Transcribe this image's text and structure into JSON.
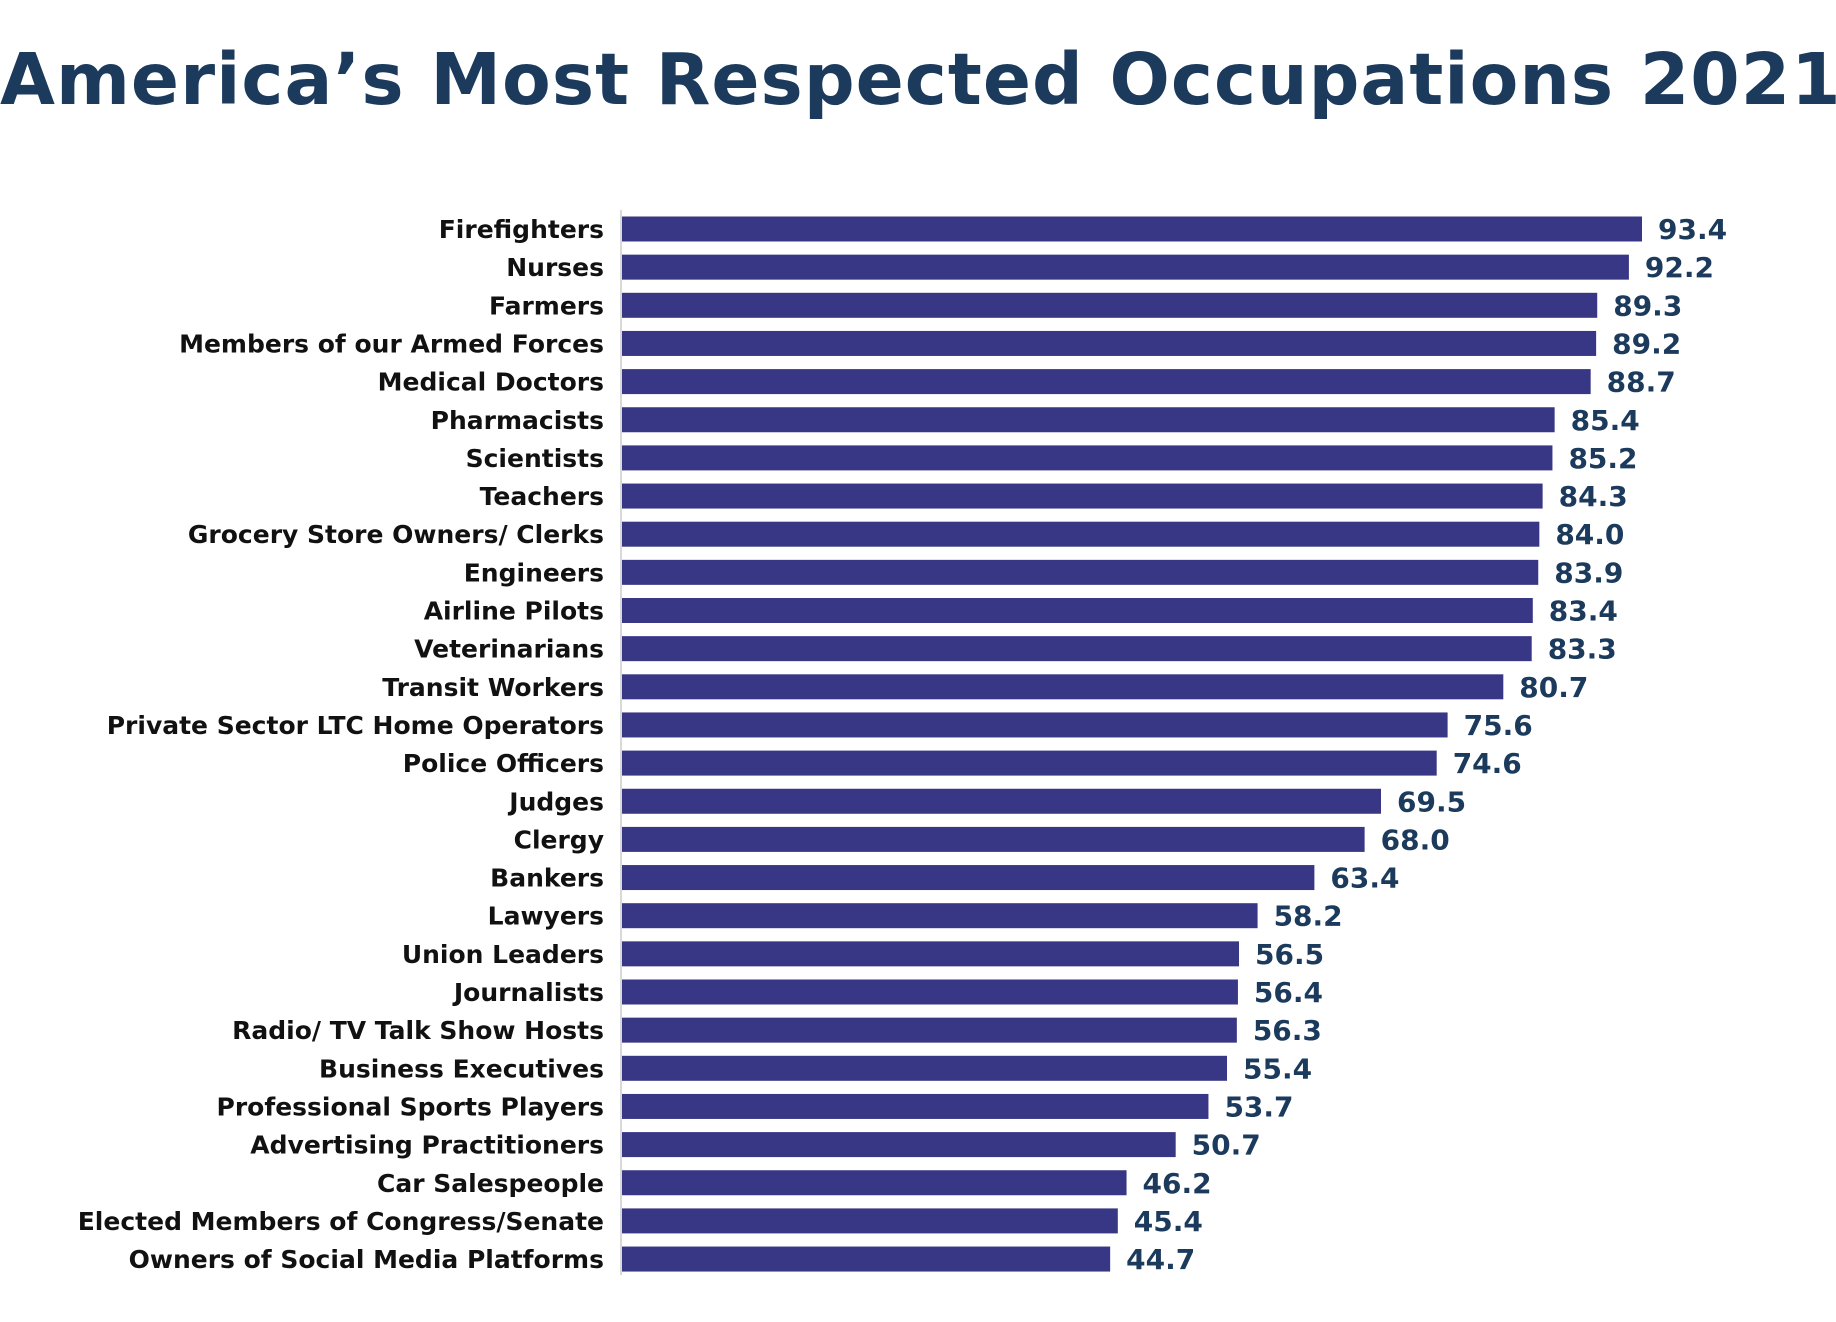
{
  "chart_data": {
    "type": "bar",
    "orientation": "horizontal",
    "title": "America’s Most Respected Occupations 2021",
    "xlabel": "",
    "ylabel": "",
    "xlim": [
      0,
      93.4
    ],
    "grid": false,
    "legend": "none",
    "bar_color": "#383785",
    "value_label_color": "#1b3a5c",
    "title_color": "#1b3a5c",
    "categories": [
      "Firefighters",
      "Nurses",
      "Farmers",
      "Members of our Armed Forces",
      "Medical Doctors",
      "Pharmacists",
      "Scientists",
      "Teachers",
      "Grocery Store Owners/ Clerks",
      "Engineers",
      "Airline Pilots",
      "Veterinarians",
      "Transit Workers",
      "Private Sector LTC Home Operators",
      "Police Officers",
      "Judges",
      "Clergy",
      "Bankers",
      "Lawyers",
      "Union Leaders",
      "Journalists",
      "Radio/ TV Talk Show Hosts",
      "Business Executives",
      "Professional Sports Players",
      "Advertising Practitioners",
      "Car Salespeople",
      "Elected Members of Congress/Senate",
      "Owners of Social Media Platforms"
    ],
    "values": [
      93.4,
      92.2,
      89.3,
      89.2,
      88.7,
      85.4,
      85.2,
      84.3,
      84.0,
      83.9,
      83.4,
      83.3,
      80.7,
      75.6,
      74.6,
      69.5,
      68.0,
      63.4,
      58.2,
      56.5,
      56.4,
      56.3,
      55.4,
      53.7,
      50.7,
      46.2,
      45.4,
      44.7
    ],
    "value_labels": [
      "93.4",
      "92.2",
      "89.3",
      "89.2",
      "88.7",
      "85.4",
      "85.2",
      "84.3",
      "84.0",
      "83.9",
      "83.4",
      "83.3",
      "80.7",
      "75.6",
      "74.6",
      "69.5",
      "68.0",
      "63.4",
      "58.2",
      "56.5",
      "56.4",
      "56.3",
      "55.4",
      "53.7",
      "50.7",
      "46.2",
      "45.4",
      "44.7"
    ]
  }
}
